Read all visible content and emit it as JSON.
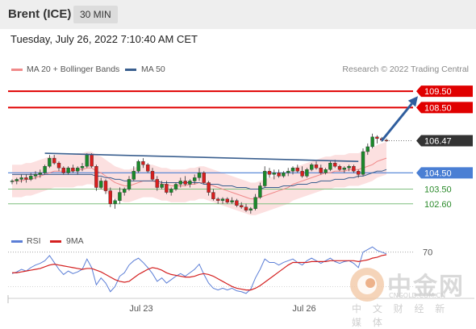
{
  "header": {
    "title": "Brent (ICE)",
    "interval": "30 MIN"
  },
  "timestamp": "Tuesday, July 26, 2022 7:10:40 AM CET",
  "legend": {
    "ma20": {
      "label": "MA 20 + Bollinger Bands",
      "color": "#f08a8a"
    },
    "ma50": {
      "label": "MA 50",
      "color": "#3a5f8f"
    },
    "rsi": {
      "label": "RSI",
      "color": "#5b7ed6"
    },
    "ma9": {
      "label": "9MA",
      "color": "#d42020"
    }
  },
  "research": "Research © 2022 Trading Central",
  "watermark": {
    "cn": "中金网",
    "en": "CNGOLD.COM.CN",
    "sub": "中 文 财 经 新 媒 体"
  },
  "chart_data": {
    "type": "candlestick",
    "ylim": [
      101.5,
      110.3
    ],
    "x_ticks": [
      "Jul 23",
      "Jul 26"
    ],
    "levels": [
      {
        "value": 109.5,
        "label": "109.50",
        "kind": "resistance"
      },
      {
        "value": 108.5,
        "label": "108.50",
        "kind": "resistance"
      },
      {
        "value": 106.47,
        "label": "106.47",
        "kind": "last"
      },
      {
        "value": 104.5,
        "label": "104.50",
        "kind": "pivot"
      },
      {
        "value": 103.5,
        "label": "103.50",
        "kind": "support"
      },
      {
        "value": 102.6,
        "label": "102.60",
        "kind": "support"
      }
    ],
    "candles": [
      [
        104.0,
        104.1,
        103.8,
        104.0
      ],
      [
        104.0,
        104.2,
        103.8,
        104.1
      ],
      [
        104.1,
        104.4,
        103.9,
        104.2
      ],
      [
        104.2,
        104.4,
        103.9,
        104.1
      ],
      [
        104.1,
        104.5,
        104.0,
        104.3
      ],
      [
        104.3,
        104.6,
        104.1,
        104.4
      ],
      [
        104.4,
        104.7,
        104.2,
        104.5
      ],
      [
        104.5,
        105.0,
        104.4,
        104.9
      ],
      [
        104.9,
        105.6,
        104.8,
        105.4
      ],
      [
        105.4,
        105.6,
        105.0,
        105.1
      ],
      [
        105.1,
        105.2,
        104.6,
        104.8
      ],
      [
        104.8,
        104.9,
        104.4,
        104.5
      ],
      [
        104.5,
        104.9,
        104.4,
        104.8
      ],
      [
        104.8,
        105.0,
        104.5,
        104.6
      ],
      [
        104.6,
        104.9,
        104.4,
        104.8
      ],
      [
        104.8,
        105.1,
        104.6,
        104.9
      ],
      [
        104.9,
        105.7,
        104.8,
        105.6
      ],
      [
        105.6,
        105.7,
        104.8,
        104.9
      ],
      [
        104.9,
        105.0,
        103.4,
        103.6
      ],
      [
        103.6,
        104.2,
        103.5,
        104.0
      ],
      [
        104.0,
        104.1,
        103.2,
        103.4
      ],
      [
        103.4,
        103.6,
        102.4,
        102.6
      ],
      [
        102.6,
        102.9,
        102.3,
        102.8
      ],
      [
        102.8,
        103.6,
        102.6,
        103.3
      ],
      [
        103.3,
        103.6,
        103.1,
        103.5
      ],
      [
        103.5,
        104.3,
        103.4,
        104.1
      ],
      [
        104.1,
        104.9,
        104.0,
        104.6
      ],
      [
        104.6,
        105.3,
        104.5,
        105.2
      ],
      [
        105.2,
        105.4,
        104.8,
        105.0
      ],
      [
        105.0,
        105.1,
        104.5,
        104.6
      ],
      [
        104.6,
        104.8,
        104.0,
        104.1
      ],
      [
        104.1,
        104.3,
        103.4,
        103.6
      ],
      [
        103.6,
        104.0,
        103.5,
        103.8
      ],
      [
        103.8,
        104.0,
        103.2,
        103.3
      ],
      [
        103.3,
        103.6,
        103.1,
        103.5
      ],
      [
        103.5,
        103.9,
        103.4,
        103.8
      ],
      [
        103.8,
        104.2,
        103.6,
        104.0
      ],
      [
        104.0,
        104.3,
        103.7,
        103.8
      ],
      [
        103.8,
        104.1,
        103.6,
        104.0
      ],
      [
        104.0,
        104.4,
        103.8,
        104.2
      ],
      [
        104.2,
        104.8,
        104.0,
        104.5
      ],
      [
        104.5,
        104.6,
        103.8,
        103.9
      ],
      [
        103.9,
        104.0,
        103.1,
        103.3
      ],
      [
        103.3,
        103.5,
        102.8,
        102.9
      ],
      [
        102.9,
        103.0,
        102.6,
        102.8
      ],
      [
        102.8,
        103.0,
        102.6,
        102.9
      ],
      [
        102.9,
        103.0,
        102.6,
        102.7
      ],
      [
        102.7,
        103.0,
        102.6,
        102.8
      ],
      [
        102.8,
        102.9,
        102.4,
        102.5
      ],
      [
        102.5,
        102.7,
        102.3,
        102.4
      ],
      [
        102.4,
        102.6,
        102.1,
        102.2
      ],
      [
        102.2,
        102.4,
        102.0,
        102.3
      ],
      [
        102.3,
        103.2,
        102.2,
        103.0
      ],
      [
        103.0,
        103.9,
        102.9,
        103.7
      ],
      [
        103.7,
        104.9,
        103.6,
        104.6
      ],
      [
        104.6,
        104.8,
        104.2,
        104.4
      ],
      [
        104.4,
        104.7,
        104.1,
        104.5
      ],
      [
        104.5,
        104.7,
        104.2,
        104.3
      ],
      [
        104.3,
        104.6,
        104.2,
        104.5
      ],
      [
        104.5,
        104.8,
        104.3,
        104.6
      ],
      [
        104.6,
        104.9,
        104.4,
        104.8
      ],
      [
        104.8,
        105.0,
        104.5,
        104.6
      ],
      [
        104.6,
        104.9,
        104.2,
        104.3
      ],
      [
        104.3,
        104.8,
        104.2,
        104.7
      ],
      [
        104.7,
        105.1,
        104.6,
        105.0
      ],
      [
        105.0,
        105.2,
        104.7,
        104.8
      ],
      [
        104.8,
        105.0,
        104.4,
        104.5
      ],
      [
        104.5,
        104.8,
        104.4,
        104.7
      ],
      [
        104.7,
        105.2,
        104.6,
        105.1
      ],
      [
        105.1,
        105.3,
        104.8,
        104.9
      ],
      [
        104.9,
        105.0,
        104.6,
        104.7
      ],
      [
        104.7,
        104.9,
        104.5,
        104.8
      ],
      [
        104.8,
        105.0,
        104.6,
        104.9
      ],
      [
        104.9,
        105.0,
        104.5,
        104.6
      ],
      [
        104.6,
        104.7,
        104.2,
        104.4
      ],
      [
        104.4,
        106.0,
        104.3,
        105.8
      ],
      [
        105.8,
        106.3,
        105.6,
        106.1
      ],
      [
        106.1,
        106.9,
        106.0,
        106.7
      ],
      [
        106.7,
        106.8,
        106.3,
        106.6
      ],
      [
        106.6,
        106.7,
        106.4,
        106.5
      ],
      [
        106.5,
        106.6,
        106.4,
        106.47
      ]
    ],
    "ma20": [
      104.0,
      104.0,
      104.0,
      104.1,
      104.1,
      104.2,
      104.3,
      104.4,
      104.5,
      104.6,
      104.6,
      104.6,
      104.6,
      104.6,
      104.7,
      104.7,
      104.8,
      104.8,
      104.6,
      104.5,
      104.3,
      104.1,
      103.9,
      103.8,
      103.7,
      103.7,
      103.8,
      103.9,
      104.0,
      104.0,
      104.0,
      103.9,
      103.8,
      103.8,
      103.7,
      103.7,
      103.7,
      103.7,
      103.8,
      103.8,
      103.9,
      103.9,
      103.8,
      103.7,
      103.6,
      103.5,
      103.4,
      103.3,
      103.2,
      103.1,
      103.0,
      102.9,
      102.9,
      103.0,
      103.1,
      103.2,
      103.3,
      103.4,
      103.5,
      103.6,
      103.8,
      103.9,
      104.0,
      104.1,
      104.2,
      104.3,
      104.4,
      104.5,
      104.5,
      104.6,
      104.6,
      104.6,
      104.7,
      104.7,
      104.7,
      104.8,
      104.9,
      105.0,
      105.2,
      105.3,
      105.4
    ],
    "ma50": [
      104.4,
      104.4,
      104.4,
      104.4,
      104.4,
      104.4,
      104.4,
      104.4,
      104.4,
      104.4,
      104.4,
      104.4,
      104.4,
      104.4,
      104.4,
      104.4,
      104.4,
      104.4,
      104.3,
      104.3,
      104.2,
      104.2,
      104.1,
      104.1,
      104.0,
      104.0,
      104.0,
      104.0,
      104.0,
      104.0,
      104.0,
      104.0,
      103.9,
      103.9,
      103.9,
      103.9,
      103.9,
      103.9,
      103.9,
      103.9,
      103.9,
      103.8,
      103.8,
      103.8,
      103.8,
      103.7,
      103.7,
      103.7,
      103.6,
      103.6,
      103.6,
      103.5,
      103.5,
      103.5,
      103.6,
      103.6,
      103.6,
      103.6,
      103.7,
      103.7,
      103.7,
      103.8,
      103.8,
      103.8,
      103.9,
      103.9,
      104.0,
      104.0,
      104.0,
      104.1,
      104.1,
      104.1,
      104.2,
      104.2,
      104.3,
      104.3,
      104.4,
      104.5,
      104.6,
      104.6,
      104.7
    ],
    "trendline": [
      [
        7,
        105.7
      ],
      [
        74,
        105.2
      ]
    ],
    "arrow": [
      [
        79,
        106.47
      ],
      [
        85,
        109.2
      ]
    ],
    "rsi": {
      "ylim": [
        20,
        80
      ],
      "level_label": "70",
      "level": 70,
      "values": [
        45,
        47,
        50,
        48,
        52,
        55,
        57,
        60,
        66,
        58,
        50,
        44,
        48,
        45,
        47,
        50,
        62,
        52,
        32,
        40,
        34,
        24,
        30,
        42,
        46,
        55,
        60,
        63,
        58,
        52,
        45,
        36,
        40,
        34,
        38,
        42,
        45,
        42,
        46,
        50,
        56,
        44,
        34,
        28,
        26,
        28,
        26,
        28,
        25,
        24,
        22,
        27,
        40,
        50,
        62,
        58,
        58,
        55,
        58,
        60,
        62,
        58,
        55,
        60,
        63,
        60,
        57,
        60,
        63,
        59,
        57,
        59,
        60,
        57,
        52,
        70,
        73,
        76,
        72,
        70,
        68
      ],
      "ma9": [
        46,
        46,
        47,
        48,
        49,
        50,
        51,
        53,
        55,
        56,
        55,
        54,
        53,
        52,
        51,
        50,
        51,
        51,
        49,
        47,
        44,
        41,
        38,
        36,
        35,
        36,
        40,
        44,
        47,
        50,
        52,
        51,
        49,
        46,
        44,
        43,
        42,
        41,
        41,
        42,
        44,
        45,
        44,
        42,
        39,
        36,
        33,
        30,
        28,
        27,
        26,
        26,
        28,
        31,
        35,
        39,
        43,
        47,
        51,
        55,
        58,
        58,
        58,
        58,
        59,
        59,
        59,
        59,
        60,
        60,
        60,
        60,
        60,
        60,
        59,
        60,
        61,
        63,
        64,
        66,
        67
      ]
    }
  }
}
